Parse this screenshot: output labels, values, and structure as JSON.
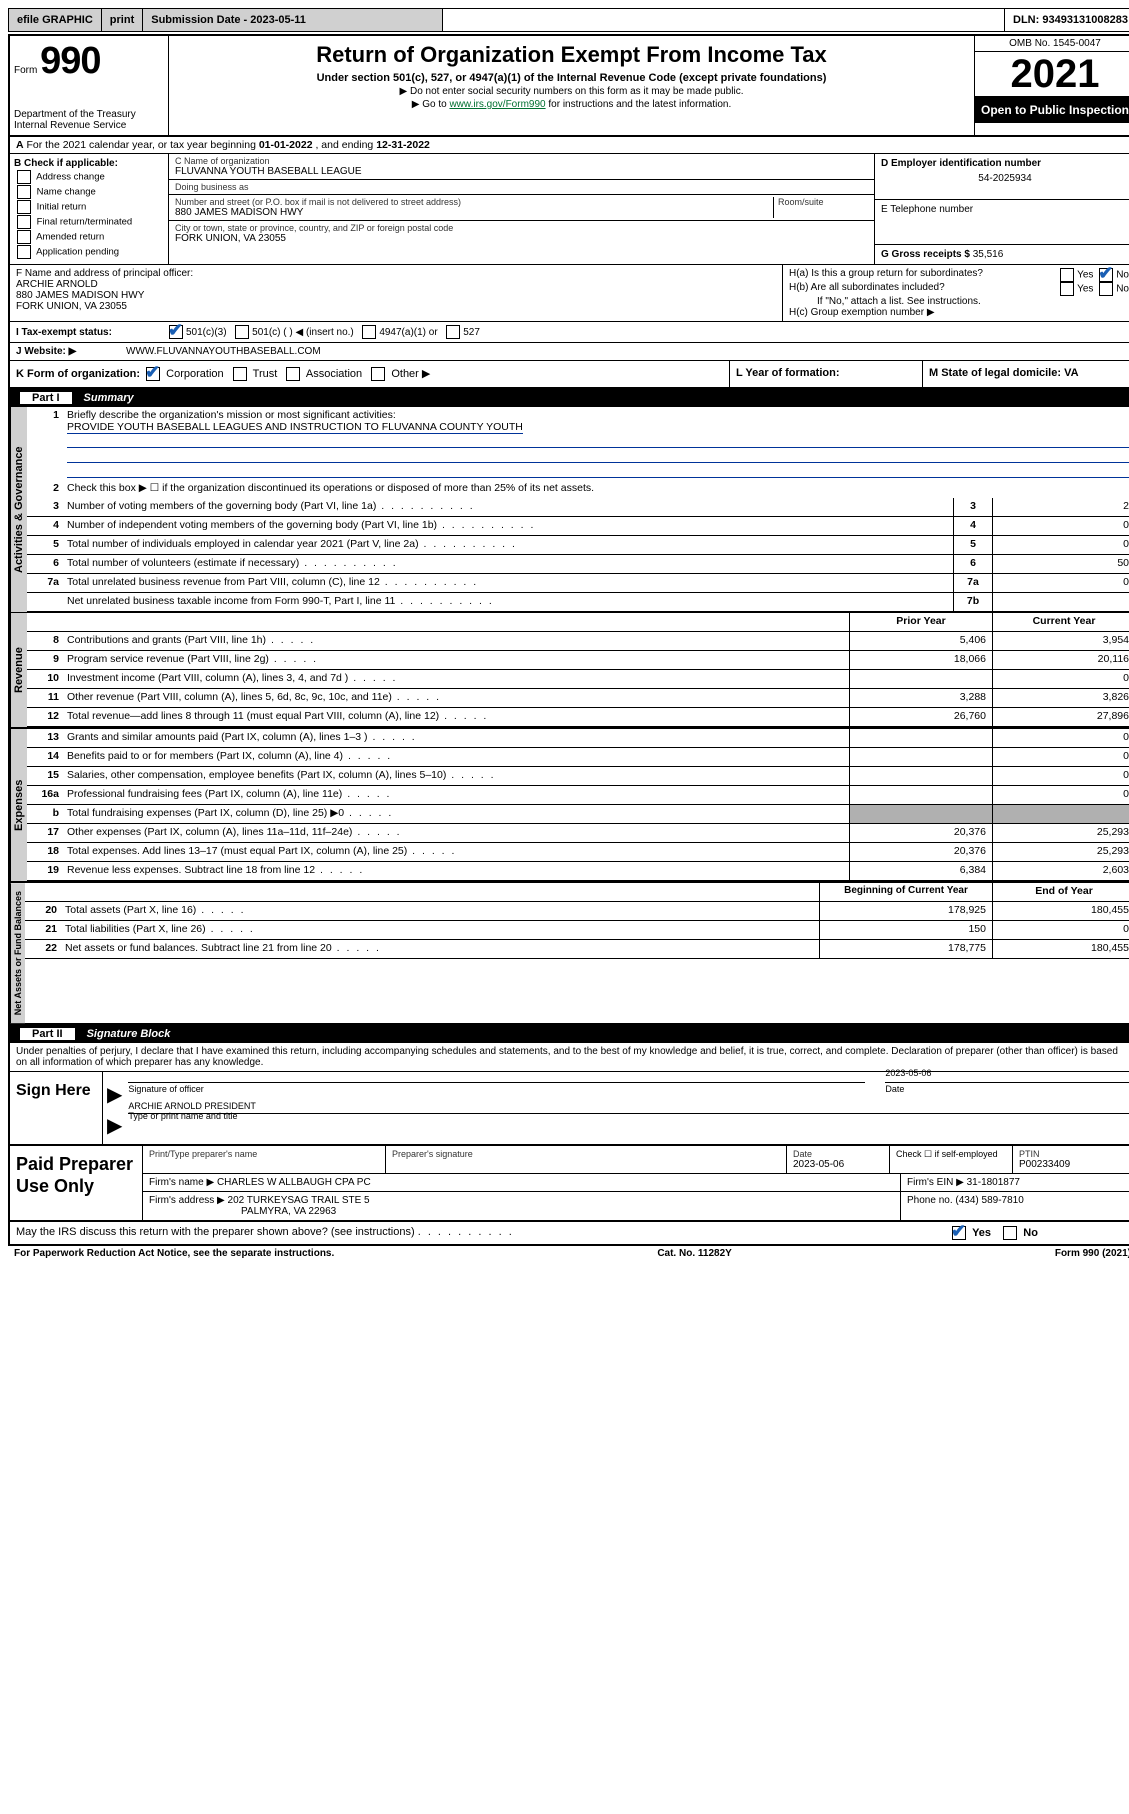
{
  "colors": {
    "link_green": "#007030",
    "link_blue": "#003399",
    "check_blue": "#1a5fb4",
    "gray_bg": "#d0d0d0",
    "shade": "#b0b0b0"
  },
  "topbar": {
    "efile": "efile GRAPHIC",
    "print": "print",
    "sub_label": "Submission Date - 2023-05-11",
    "dln": "DLN: 93493131008283"
  },
  "header": {
    "form_word": "Form",
    "form_num": "990",
    "dept": "Department of the Treasury",
    "irs": "Internal Revenue Service",
    "title": "Return of Organization Exempt From Income Tax",
    "subtitle": "Under section 501(c), 527, or 4947(a)(1) of the Internal Revenue Code (except private foundations)",
    "note1": "▶ Do not enter social security numbers on this form as it may be made public.",
    "note2_pre": "▶ Go to ",
    "note2_link": "www.irs.gov/Form990",
    "note2_post": " for instructions and the latest information.",
    "omb": "OMB No. 1545-0047",
    "year": "2021",
    "open": "Open to Public Inspection"
  },
  "lineA": {
    "text_pre": "For the 2021 calendar year, or tax year beginning ",
    "begin": "01-01-2022",
    "mid": " , and ending ",
    "end": "12-31-2022"
  },
  "blockB": {
    "label": "B Check if applicable:",
    "opts": [
      "Address change",
      "Name change",
      "Initial return",
      "Final return/terminated",
      "Amended return",
      "Application pending"
    ]
  },
  "blockC": {
    "name_lbl": "C Name of organization",
    "name": "FLUVANNA YOUTH BASEBALL LEAGUE",
    "dba_lbl": "Doing business as",
    "dba": "",
    "addr_lbl": "Number and street (or P.O. box if mail is not delivered to street address)",
    "room_lbl": "Room/suite",
    "addr": "880 JAMES MADISON HWY",
    "city_lbl": "City or town, state or province, country, and ZIP or foreign postal code",
    "city": "FORK UNION, VA  23055"
  },
  "blockD": {
    "label": "D Employer identification number",
    "ein": "54-2025934",
    "e_label": "E Telephone number",
    "phone": "",
    "g_label": "G Gross receipts $",
    "gross": "35,516"
  },
  "blockF": {
    "label": "F  Name and address of principal officer:",
    "name": "ARCHIE ARNOLD",
    "addr1": "880 JAMES MADISON HWY",
    "addr2": "FORK UNION, VA  23055"
  },
  "blockH": {
    "ha": "H(a)  Is this a group return for subordinates?",
    "hb": "H(b)  Are all subordinates included?",
    "hb_note": "If \"No,\" attach a list. See instructions.",
    "hc": "H(c)  Group exemption number ▶"
  },
  "lineI": {
    "label": "I   Tax-exempt status:",
    "o1": "501(c)(3)",
    "o2": "501(c) (  ) ◀ (insert no.)",
    "o3": "4947(a)(1) or",
    "o4": "527"
  },
  "lineJ": {
    "label": "J   Website: ▶",
    "url": "WWW.FLUVANNAYOUTHBASEBALL.COM"
  },
  "lineK": {
    "label": "K Form of organization:",
    "o1": "Corporation",
    "o2": "Trust",
    "o3": "Association",
    "o4": "Other ▶",
    "l_label": "L Year of formation:",
    "l_val": "",
    "m_label": "M State of legal domicile: VA"
  },
  "part1": {
    "label": "Part I",
    "title": "Summary"
  },
  "summary": {
    "briefly_lbl": "Briefly describe the organization's mission or most significant activities:",
    "mission": "PROVIDE YOUTH BASEBALL LEAGUES AND INSTRUCTION TO FLUVANNA COUNTY YOUTH",
    "line2": "Check this box ▶ ☐  if the organization discontinued its operations or disposed of more than 25% of its net assets.",
    "rows_gov": [
      {
        "n": "3",
        "t": "Number of voting members of the governing body (Part VI, line 1a)",
        "col": "3",
        "v": "2"
      },
      {
        "n": "4",
        "t": "Number of independent voting members of the governing body (Part VI, line 1b)",
        "col": "4",
        "v": "0"
      },
      {
        "n": "5",
        "t": "Total number of individuals employed in calendar year 2021 (Part V, line 2a)",
        "col": "5",
        "v": "0"
      },
      {
        "n": "6",
        "t": "Total number of volunteers (estimate if necessary)",
        "col": "6",
        "v": "50"
      },
      {
        "n": "7a",
        "t": "Total unrelated business revenue from Part VIII, column (C), line 12",
        "col": "7a",
        "v": "0"
      },
      {
        "n": "",
        "t": "Net unrelated business taxable income from Form 990-T, Part I, line 11",
        "col": "7b",
        "v": ""
      }
    ],
    "hdr_prior": "Prior Year",
    "hdr_curr": "Current Year",
    "rows_rev": [
      {
        "n": "8",
        "t": "Contributions and grants (Part VIII, line 1h)",
        "p": "5,406",
        "c": "3,954"
      },
      {
        "n": "9",
        "t": "Program service revenue (Part VIII, line 2g)",
        "p": "18,066",
        "c": "20,116"
      },
      {
        "n": "10",
        "t": "Investment income (Part VIII, column (A), lines 3, 4, and 7d )",
        "p": "",
        "c": "0"
      },
      {
        "n": "11",
        "t": "Other revenue (Part VIII, column (A), lines 5, 6d, 8c, 9c, 10c, and 11e)",
        "p": "3,288",
        "c": "3,826"
      },
      {
        "n": "12",
        "t": "Total revenue—add lines 8 through 11 (must equal Part VIII, column (A), line 12)",
        "p": "26,760",
        "c": "27,896"
      }
    ],
    "rows_exp": [
      {
        "n": "13",
        "t": "Grants and similar amounts paid (Part IX, column (A), lines 1–3 )",
        "p": "",
        "c": "0"
      },
      {
        "n": "14",
        "t": "Benefits paid to or for members (Part IX, column (A), line 4)",
        "p": "",
        "c": "0"
      },
      {
        "n": "15",
        "t": "Salaries, other compensation, employee benefits (Part IX, column (A), lines 5–10)",
        "p": "",
        "c": "0"
      },
      {
        "n": "16a",
        "t": "Professional fundraising fees (Part IX, column (A), line 11e)",
        "p": "",
        "c": "0"
      },
      {
        "n": "b",
        "t": "Total fundraising expenses (Part IX, column (D), line 25) ▶0",
        "p": "GRAY",
        "c": "GRAY"
      },
      {
        "n": "17",
        "t": "Other expenses (Part IX, column (A), lines 11a–11d, 11f–24e)",
        "p": "20,376",
        "c": "25,293"
      },
      {
        "n": "18",
        "t": "Total expenses. Add lines 13–17 (must equal Part IX, column (A), line 25)",
        "p": "20,376",
        "c": "25,293"
      },
      {
        "n": "19",
        "t": "Revenue less expenses. Subtract line 18 from line 12",
        "p": "6,384",
        "c": "2,603"
      }
    ],
    "hdr_begin": "Beginning of Current Year",
    "hdr_end": "End of Year",
    "rows_net": [
      {
        "n": "20",
        "t": "Total assets (Part X, line 16)",
        "p": "178,925",
        "c": "180,455"
      },
      {
        "n": "21",
        "t": "Total liabilities (Part X, line 26)",
        "p": "150",
        "c": "0"
      },
      {
        "n": "22",
        "t": "Net assets or fund balances. Subtract line 21 from line 20",
        "p": "178,775",
        "c": "180,455"
      }
    ]
  },
  "part2": {
    "label": "Part II",
    "title": "Signature Block"
  },
  "perjury": "Under penalties of perjury, I declare that I have examined this return, including accompanying schedules and statements, and to the best of my knowledge and belief, it is true, correct, and complete. Declaration of preparer (other than officer) is based on all information of which preparer has any knowledge.",
  "sign": {
    "left": "Sign Here",
    "sig_of_officer": "Signature of officer",
    "date_lbl": "Date",
    "date": "2023-05-06",
    "name_title": "ARCHIE ARNOLD  PRESIDENT",
    "name_title_lbl": "Type or print name and title"
  },
  "prep": {
    "left": "Paid Preparer Use Only",
    "print_name_lbl": "Print/Type preparer's name",
    "print_name": "",
    "sig_lbl": "Preparer's signature",
    "date_lbl": "Date",
    "date": "2023-05-06",
    "check_lbl": "Check ☐ if self-employed",
    "ptin_lbl": "PTIN",
    "ptin": "P00233409",
    "firm_name_lbl": "Firm's name    ▶",
    "firm_name": "CHARLES W ALLBAUGH CPA PC",
    "firm_ein_lbl": "Firm's EIN ▶",
    "firm_ein": "31-1801877",
    "firm_addr_lbl": "Firm's address ▶",
    "firm_addr1": "202 TURKEYSAG TRAIL STE 5",
    "firm_addr2": "PALMYRA, VA  22963",
    "phone_lbl": "Phone no.",
    "phone": "(434) 589-7810"
  },
  "discuss": {
    "text": "May the IRS discuss this return with the preparer shown above? (see instructions)",
    "yes": "Yes",
    "no": "No"
  },
  "footer": {
    "left": "For Paperwork Reduction Act Notice, see the separate instructions.",
    "mid": "Cat. No. 11282Y",
    "right": "Form 990 (2021)"
  },
  "tabs": {
    "gov": "Activities & Governance",
    "rev": "Revenue",
    "exp": "Expenses",
    "net": "Net Assets or Fund Balances"
  }
}
